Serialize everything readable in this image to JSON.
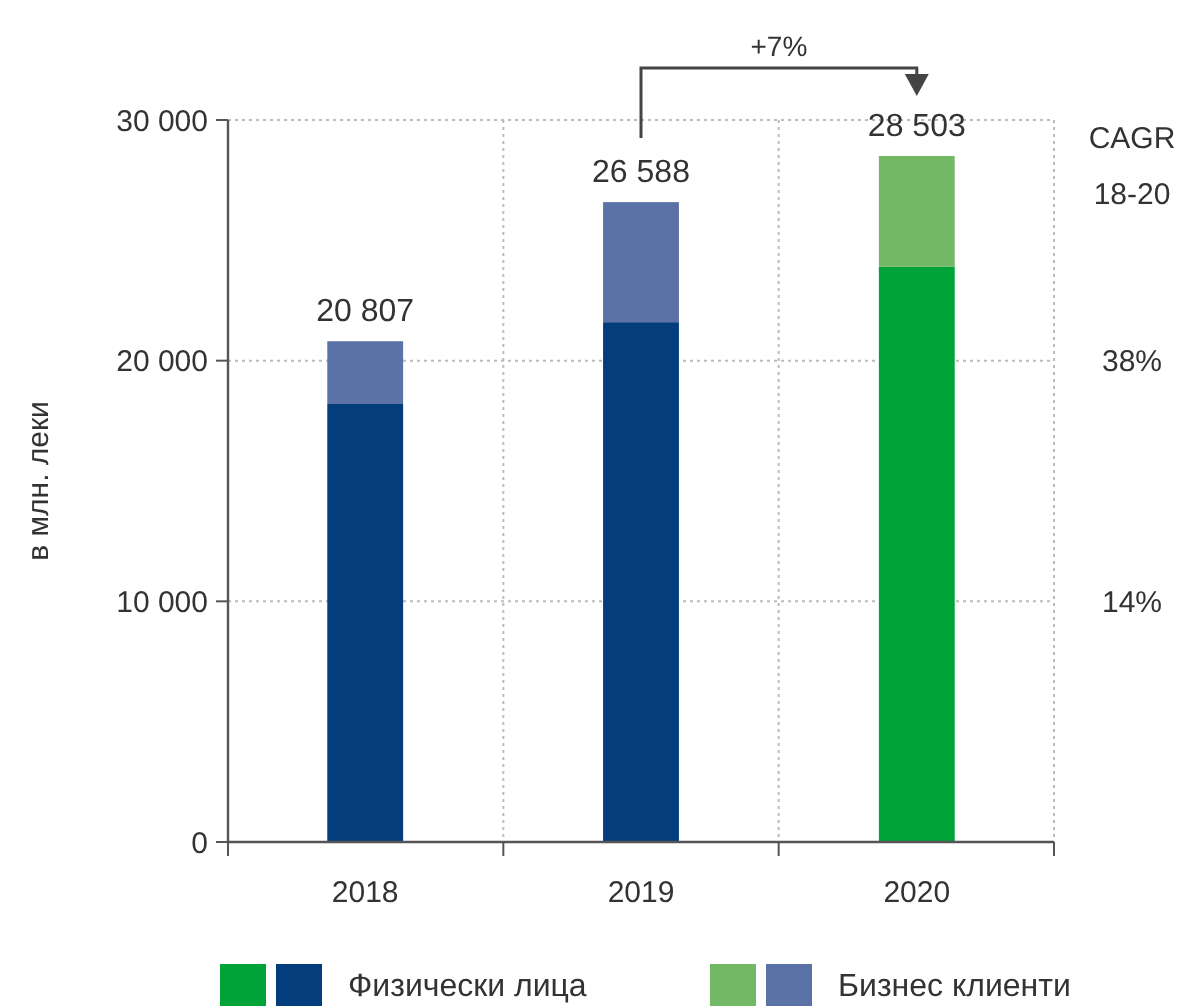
{
  "chart_data": {
    "type": "bar",
    "stacked": true,
    "ylabel": "в млн. леки",
    "categories": [
      "2018",
      "2019",
      "2020"
    ],
    "series": [
      {
        "name": "Физически лица",
        "colors": [
          "#033d7c",
          "#033d7c",
          "#00a337"
        ],
        "values": [
          18200,
          21600,
          23900
        ]
      },
      {
        "name": "Бизнес клиенти",
        "colors": [
          "#5b72a6",
          "#5b72a6",
          "#73b865"
        ],
        "values": [
          2607,
          4988,
          4603
        ]
      }
    ],
    "totals": [
      "20 807",
      "26 588",
      "28 503"
    ],
    "ylim": [
      0,
      30000
    ],
    "yticks": [
      {
        "value": 0,
        "label": "0"
      },
      {
        "value": 10000,
        "label": "10 000"
      },
      {
        "value": 20000,
        "label": "20 000"
      },
      {
        "value": 30000,
        "label": "30 000"
      }
    ],
    "grid": true,
    "legend": "bottom",
    "annotations": [
      "+7%",
      "CAGR 18-20",
      "38%",
      "14%"
    ]
  }
}
